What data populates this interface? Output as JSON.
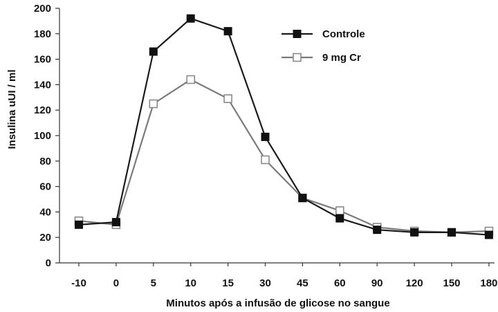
{
  "chart_data": {
    "type": "line",
    "title": "",
    "xlabel": "Minutos após a infusão de glicose no sangue",
    "ylabel": "Insulina uUI / ml",
    "categories": [
      "-10",
      "0",
      "5",
      "10",
      "15",
      "30",
      "45",
      "60",
      "90",
      "120",
      "150",
      "180"
    ],
    "ylim": [
      0,
      200
    ],
    "yticks": [
      0,
      20,
      40,
      60,
      80,
      100,
      120,
      140,
      160,
      180,
      200
    ],
    "grid": false,
    "legend_position": "top-right",
    "series": [
      {
        "name": "Controle",
        "color": "#1a1a1a",
        "marker": "filled-square",
        "values": [
          30,
          32,
          166,
          192,
          182,
          99,
          51,
          35,
          26,
          24,
          24,
          22
        ]
      },
      {
        "name": "9 mg Cr",
        "color": "#7a7a7a",
        "marker": "open-square",
        "values": [
          33,
          30,
          125,
          144,
          129,
          81,
          51,
          41,
          28,
          25,
          24,
          25
        ]
      }
    ]
  }
}
